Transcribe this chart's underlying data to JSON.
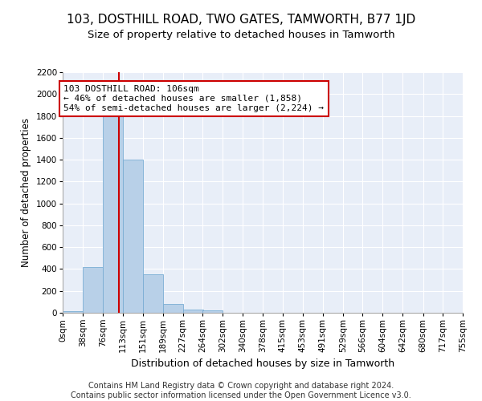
{
  "title": "103, DOSTHILL ROAD, TWO GATES, TAMWORTH, B77 1JD",
  "subtitle": "Size of property relative to detached houses in Tamworth",
  "xlabel": "Distribution of detached houses by size in Tamworth",
  "ylabel": "Number of detached properties",
  "bar_color": "#b8d0e8",
  "bar_edge_color": "#7aadd4",
  "background_color": "#e8eef8",
  "grid_color": "#ffffff",
  "bin_edges": [
    0,
    38,
    76,
    113,
    151,
    189,
    227,
    264,
    302,
    340,
    378,
    415,
    453,
    491,
    529,
    566,
    604,
    642,
    680,
    717,
    755
  ],
  "bar_heights": [
    15,
    420,
    1820,
    1400,
    350,
    80,
    30,
    20,
    0,
    0,
    0,
    0,
    0,
    0,
    0,
    0,
    0,
    0,
    0,
    0
  ],
  "red_line_x": 106,
  "annotation_text": "103 DOSTHILL ROAD: 106sqm\n← 46% of detached houses are smaller (1,858)\n54% of semi-detached houses are larger (2,224) →",
  "annotation_box_color": "#ffffff",
  "annotation_border_color": "#cc0000",
  "ylim": [
    0,
    2200
  ],
  "yticks": [
    0,
    200,
    400,
    600,
    800,
    1000,
    1200,
    1400,
    1600,
    1800,
    2000,
    2200
  ],
  "footer_text": "Contains HM Land Registry data © Crown copyright and database right 2024.\nContains public sector information licensed under the Open Government Licence v3.0.",
  "title_fontsize": 11,
  "subtitle_fontsize": 9.5,
  "xlabel_fontsize": 9,
  "ylabel_fontsize": 8.5,
  "tick_fontsize": 7.5,
  "annotation_fontsize": 8,
  "footer_fontsize": 7
}
